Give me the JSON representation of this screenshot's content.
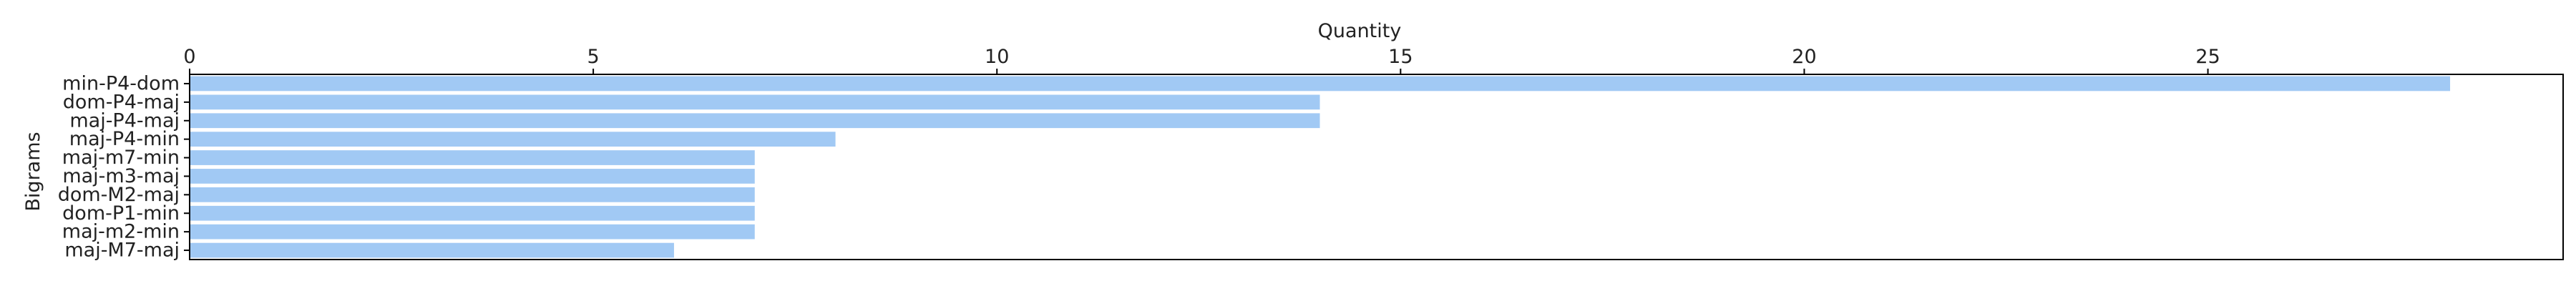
{
  "chart_data": {
    "type": "bar",
    "orientation": "horizontal",
    "categories": [
      "min-P4-dom",
      "dom-P4-maj",
      "maj-P4-maj",
      "maj-P4-min",
      "maj-m7-min",
      "maj-m3-maj",
      "dom-M2-maj",
      "dom-P1-min",
      "maj-m2-min",
      "maj-M7-maj"
    ],
    "values": [
      28,
      14,
      14,
      8,
      7,
      7,
      7,
      7,
      7,
      6
    ],
    "xlabel": "Quantity",
    "ylabel": "Bigrams",
    "xlim": [
      0,
      29.4
    ],
    "xticks": [
      0,
      5,
      10,
      15,
      20,
      25
    ],
    "x_axis_position": "top",
    "grid": false,
    "bar_color": "#a1c9f4"
  }
}
